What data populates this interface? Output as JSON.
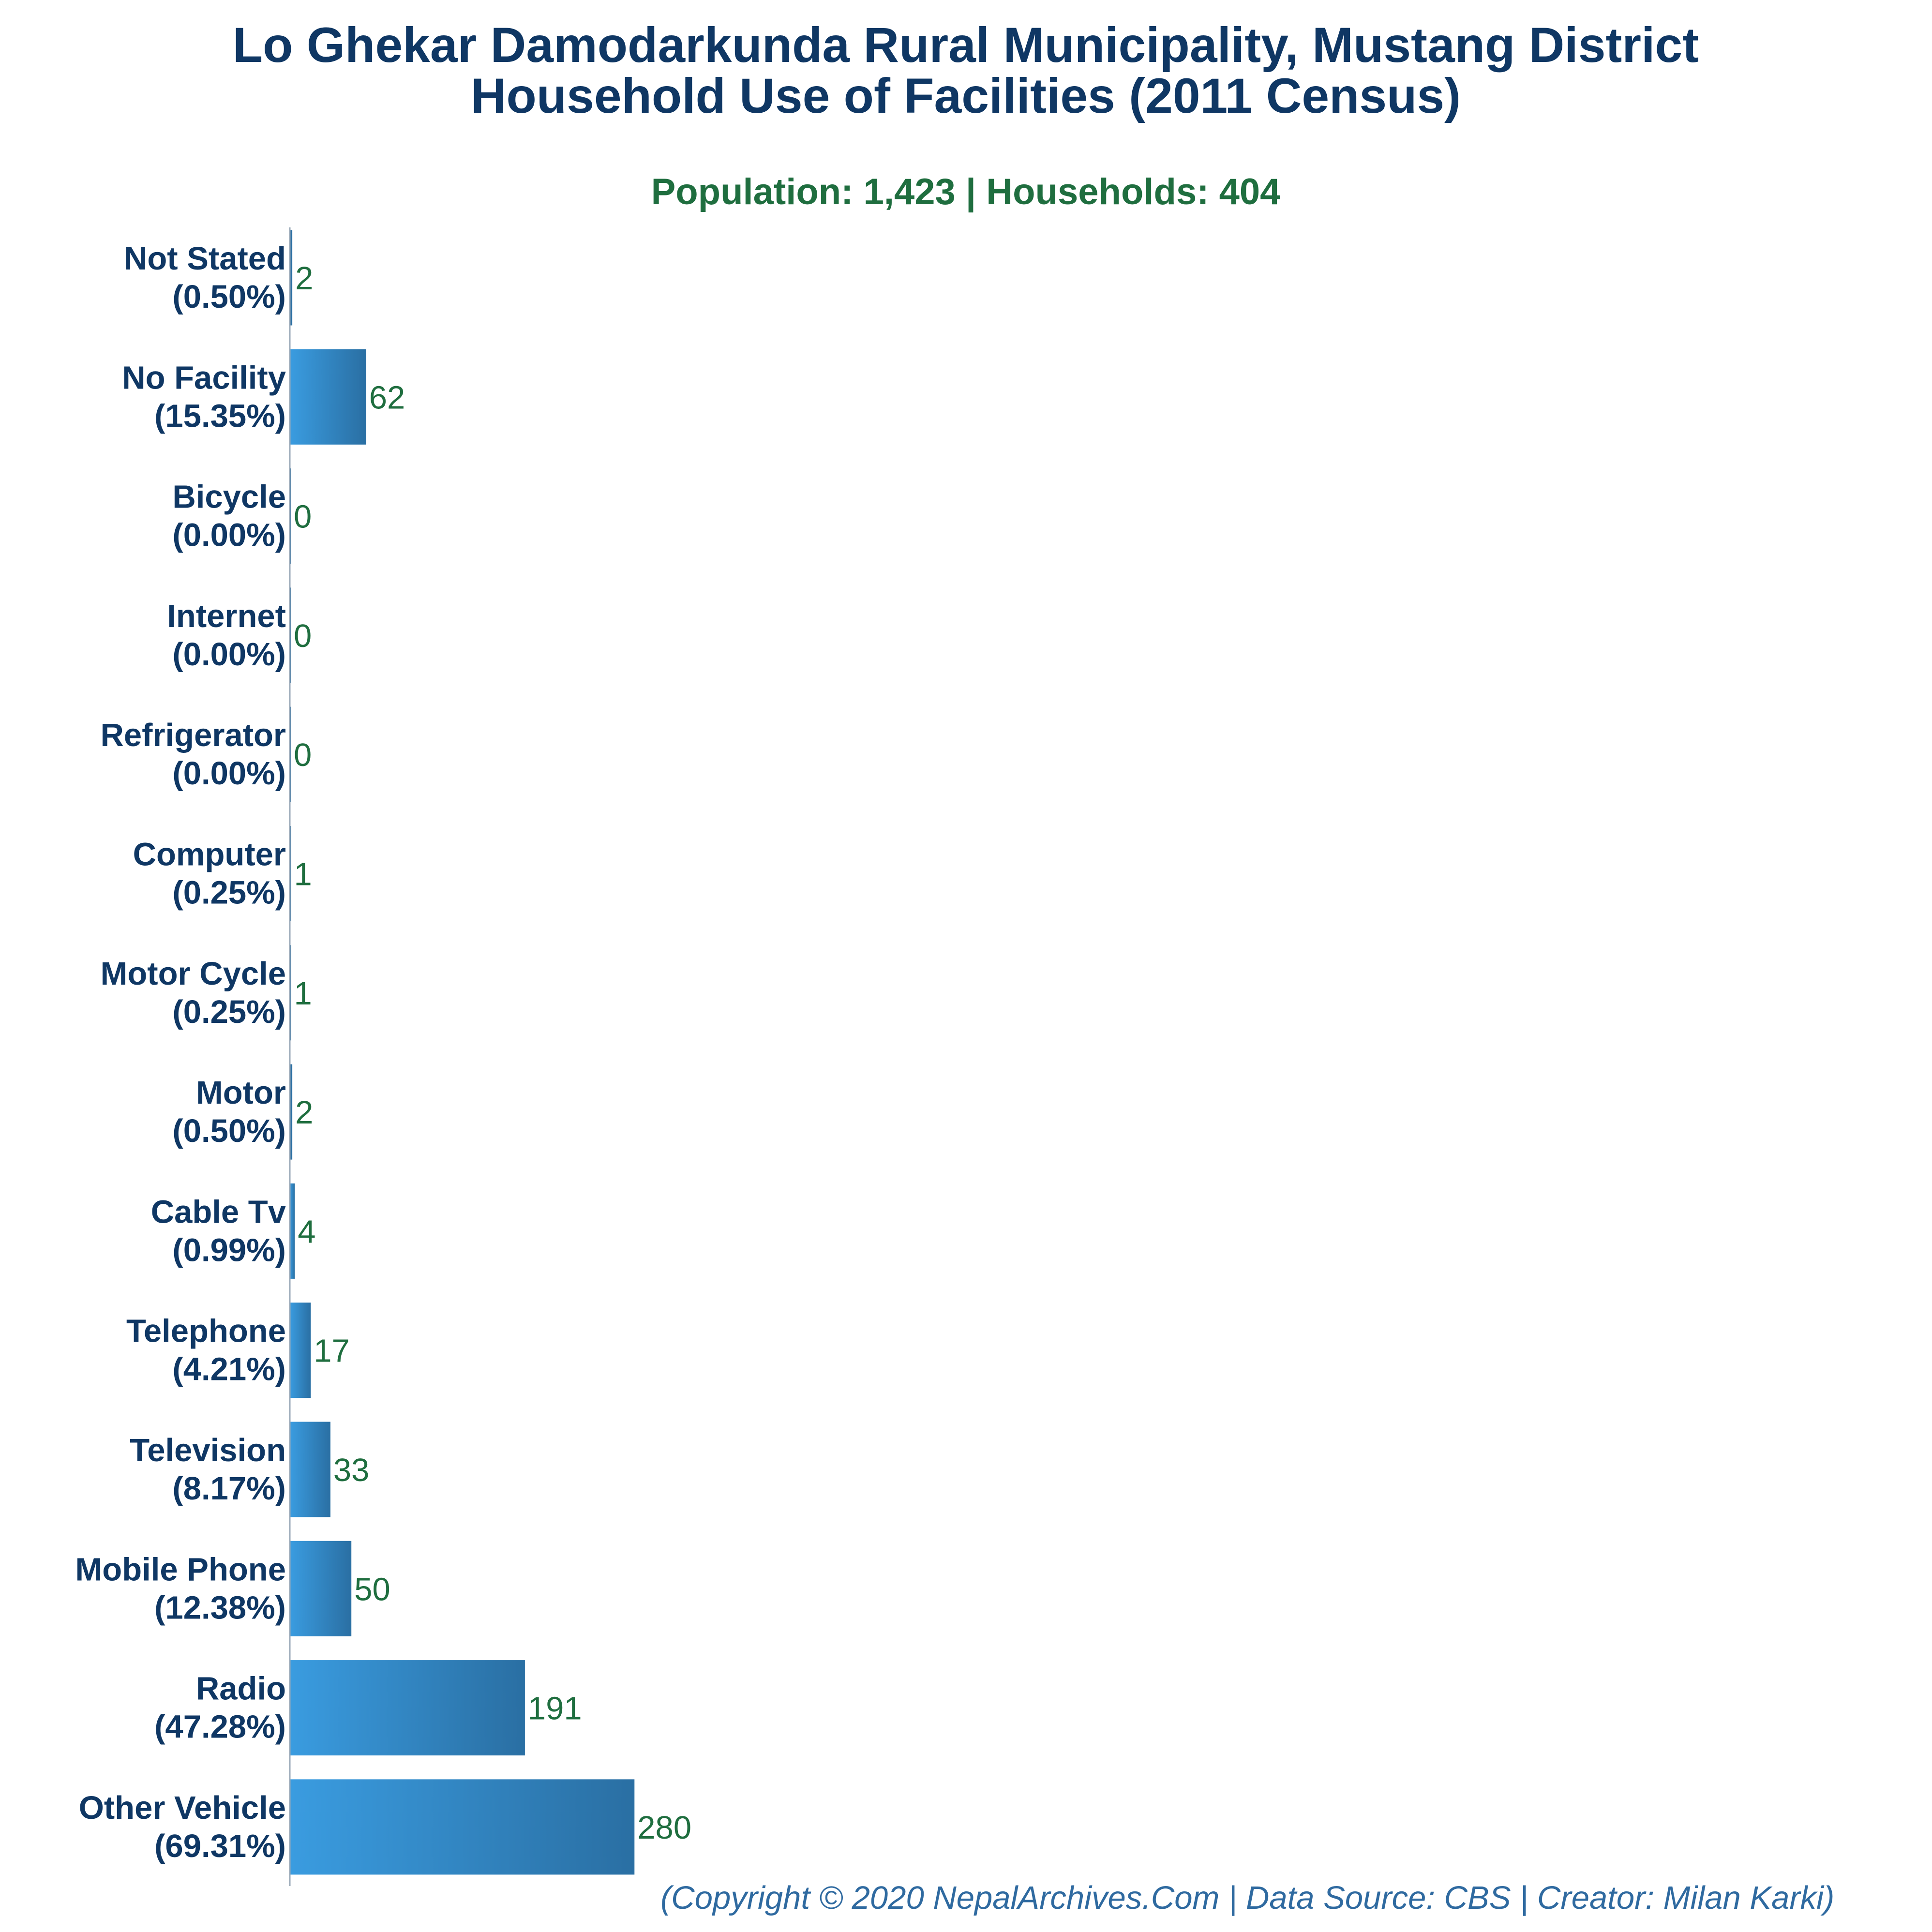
{
  "chart_data": {
    "type": "bar",
    "orientation": "horizontal",
    "title_line1": "Lo Ghekar Damodarkunda Rural Municipality, Mustang District",
    "title_line2": "Household Use of Facilities (2011 Census)",
    "subtitle": "Population: 1,423 | Households: 404",
    "footer": "(Copyright © 2020 NepalArchives.Com | Data Source: CBS | Creator: Milan Karki)",
    "categories": [
      "Not Stated",
      "No Facility",
      "Bicycle",
      "Internet",
      "Refrigerator",
      "Computer",
      "Motor Cycle",
      "Motor",
      "Cable Tv",
      "Telephone",
      "Television",
      "Mobile Phone",
      "Radio",
      "Other Vehicle"
    ],
    "percent_labels": [
      "(0.50%)",
      "(15.35%)",
      "(0.00%)",
      "(0.00%)",
      "(0.00%)",
      "(0.25%)",
      "(0.25%)",
      "(0.50%)",
      "(0.99%)",
      "(4.21%)",
      "(8.17%)",
      "(12.38%)",
      "(47.28%)",
      "(69.31%)"
    ],
    "values": [
      2,
      62,
      0,
      0,
      0,
      1,
      1,
      2,
      4,
      17,
      33,
      50,
      191,
      280
    ],
    "xlim": [
      0,
      1050
    ],
    "grid": false,
    "legend": "none",
    "colors": {
      "bar_light": "#3a9ce0",
      "bar_dark": "#2a6fa3",
      "title": "#0f3764",
      "subtitle": "#1f6e3f",
      "value_label": "#1f6e3f",
      "footer": "#2f6aa0",
      "axis": "#9aa9b8"
    }
  }
}
